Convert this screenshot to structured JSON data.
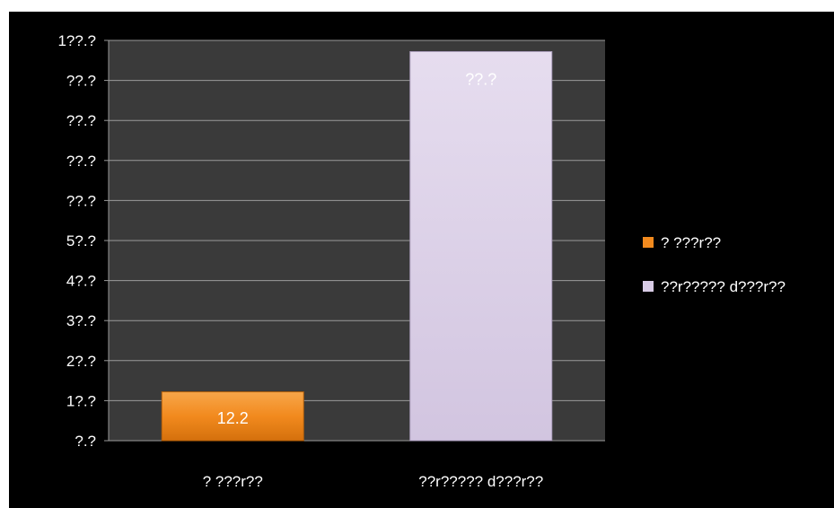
{
  "chart_data": {
    "type": "bar",
    "categories": [
      "? ???r??",
      "??r????? d???r??"
    ],
    "values": [
      12.2,
      97.2
    ],
    "data_labels": [
      "12.2",
      "??.?"
    ],
    "y_ticks": [
      "?.?",
      "1?.?",
      "2?.?",
      "3?.?",
      "4?.?",
      "5?.?",
      "??.?",
      "??.?",
      "??.?",
      "??.?",
      "1??.?"
    ],
    "ylim": [
      0,
      100
    ],
    "grid": true,
    "legend_position": "right",
    "series": [
      {
        "name": "? ???r??",
        "color": "#f28a1e"
      },
      {
        "name": "??r????? d???r??",
        "color": "#d8cce6"
      }
    ],
    "colors": {
      "background": "#000000",
      "plot_area": "#3a3a3a",
      "gridline": "#9a9a9a",
      "text": "#ffffff"
    }
  }
}
